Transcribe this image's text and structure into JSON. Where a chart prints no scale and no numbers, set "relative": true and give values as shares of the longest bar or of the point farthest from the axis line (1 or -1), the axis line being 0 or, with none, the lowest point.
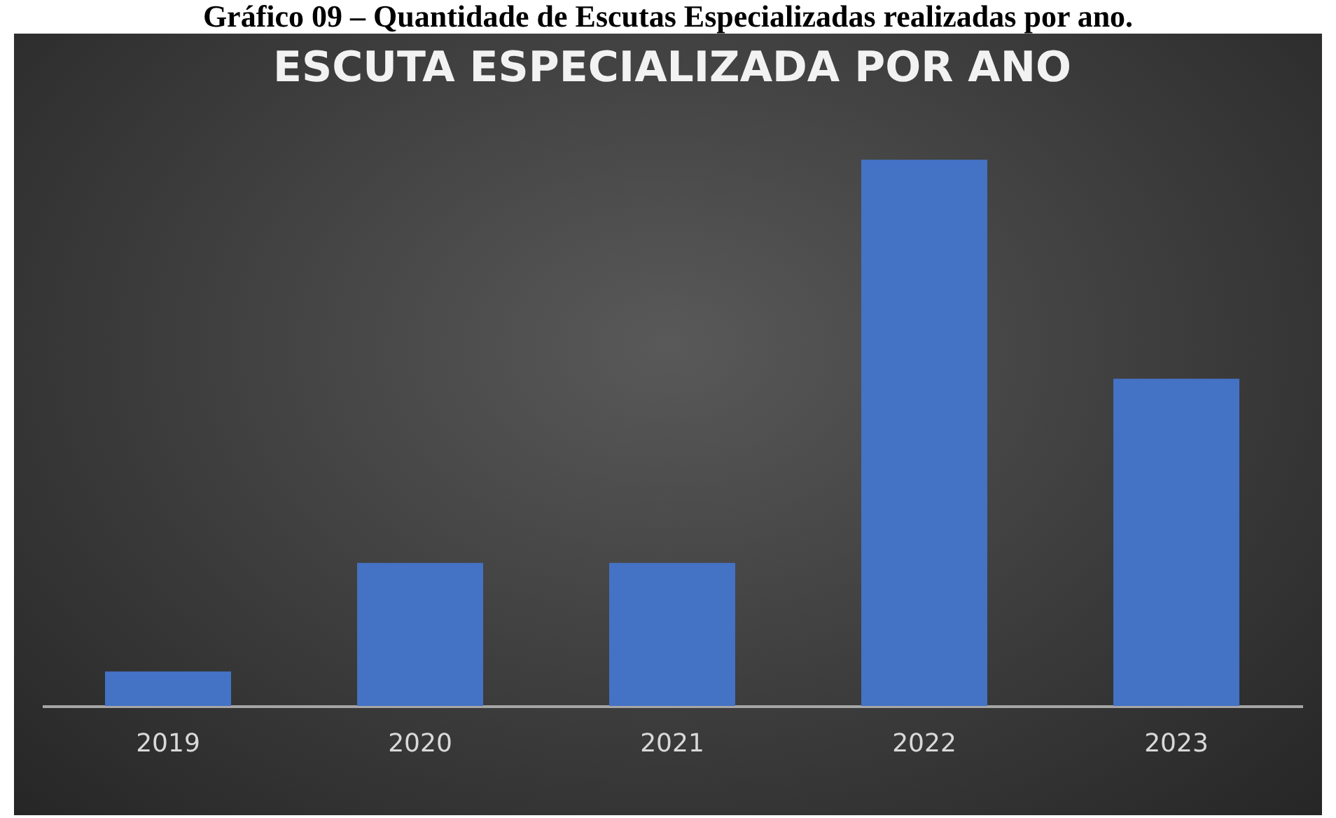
{
  "chart_data": {
    "type": "bar",
    "title": "ESCUTA ESPECIALIZADA POR ANO",
    "annotations": [
      "Gráfico 09 – Quantidade de Escutas Especializadas realizadas por ano."
    ],
    "categories": [
      "2019",
      "2020",
      "2021",
      "2022",
      "2023"
    ],
    "values": [
      0.063,
      0.262,
      0.262,
      1,
      0.599
    ],
    "color": "#4472c4",
    "relative": true
  }
}
